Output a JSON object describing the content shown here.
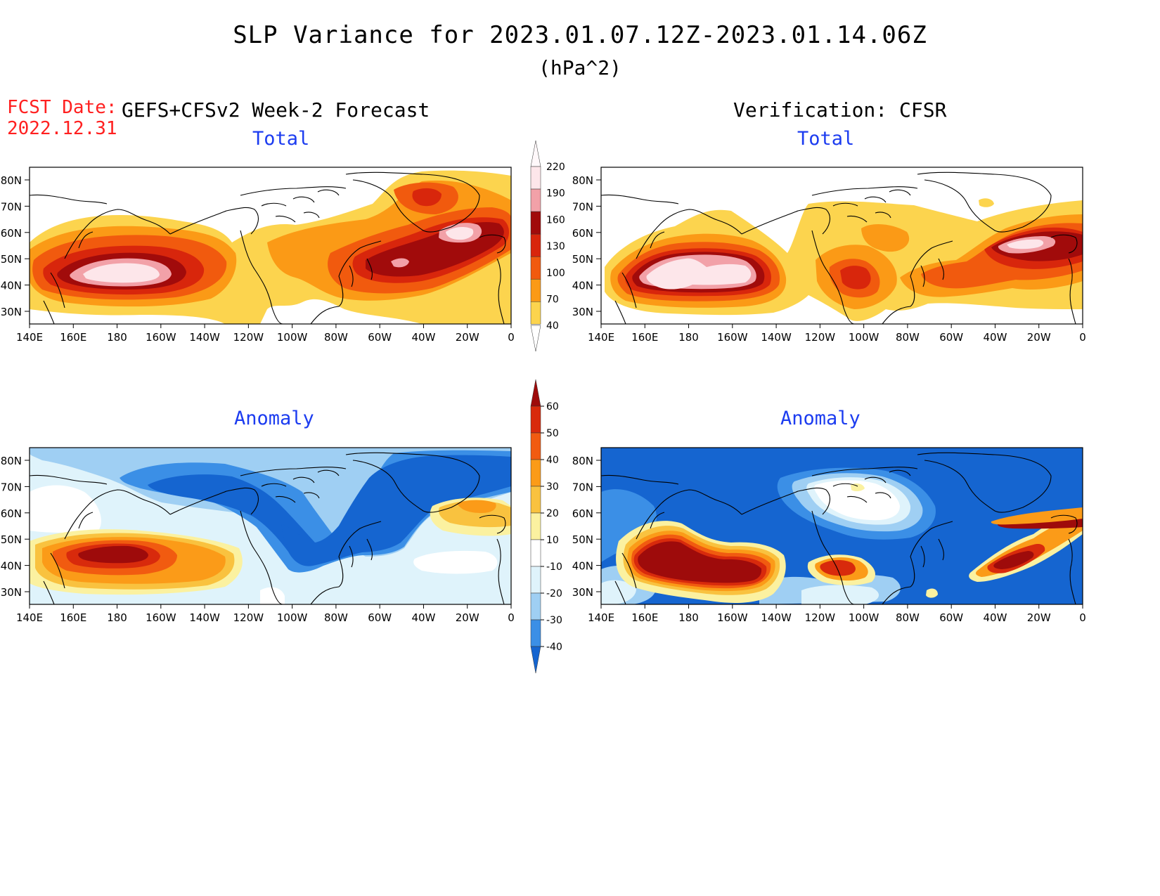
{
  "header": {
    "title": "SLP Variance for 2023.01.07.12Z-2023.01.14.06Z",
    "units": "(hPa^2)",
    "fcst_label": "FCST Date:",
    "fcst_date": "2022.12.31",
    "left_subtitle": "GEFS+CFSv2 Week-2 Forecast",
    "right_subtitle": "Verification: CFSR"
  },
  "panels": {
    "total_left_title": "Total",
    "total_right_title": "Total",
    "anom_left_title": "Anomaly",
    "anom_right_title": "Anomaly"
  },
  "axes": {
    "lat_labels": [
      "80N",
      "70N",
      "60N",
      "50N",
      "40N",
      "30N"
    ],
    "lon_labels": [
      "140E",
      "160E",
      "180",
      "160W",
      "140W",
      "120W",
      "100W",
      "80W",
      "60W",
      "40W",
      "20W",
      "0"
    ]
  },
  "colorbars": {
    "total": {
      "labels": [
        "220",
        "190",
        "160",
        "130",
        "100",
        "70",
        "40"
      ],
      "colors": [
        "#fde6ea",
        "#f2a1a8",
        "#a10b0b",
        "#d8260c",
        "#f15a0e",
        "#fb9a16",
        "#fcd44e"
      ]
    },
    "anomaly": {
      "labels": [
        "60",
        "50",
        "40",
        "30",
        "20",
        "10",
        "-10",
        "-20",
        "-30",
        "-40"
      ],
      "colors": [
        "#9e0b0b",
        "#d82a0c",
        "#f15b10",
        "#fb9b18",
        "#f9c23f",
        "#fbf1a0",
        "#ffffff",
        "#dff3fb",
        "#9fcff3",
        "#3b8fe6",
        "#1565d0"
      ]
    }
  },
  "colors": {
    "title_blue": "#1c3cf0",
    "fcst_red": "#ff2020"
  }
}
